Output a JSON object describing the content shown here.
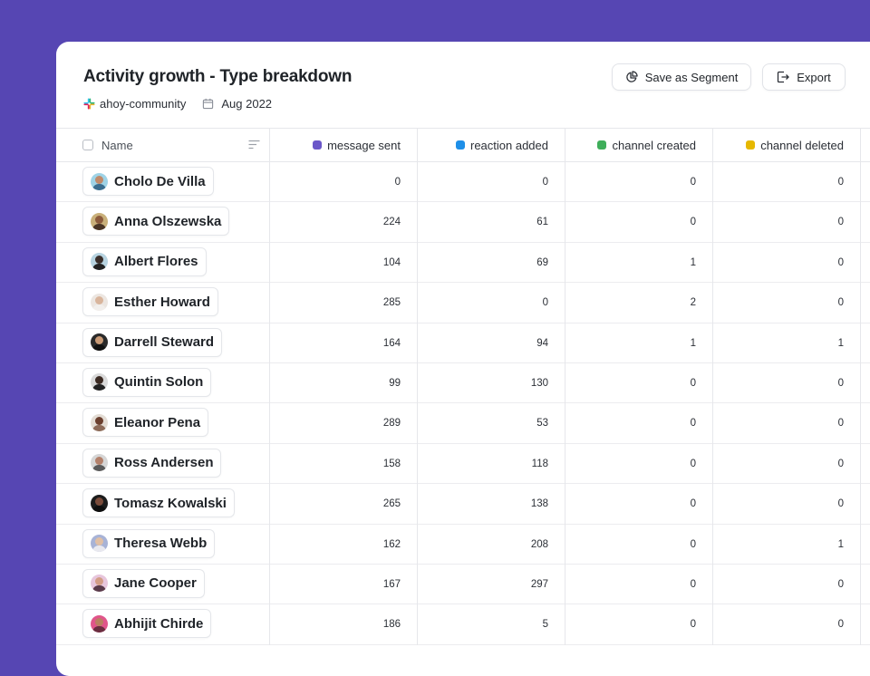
{
  "header": {
    "title": "Activity growth - Type breakdown",
    "workspace": "ahoy-community",
    "date": "Aug 2022",
    "save_segment_label": "Save as Segment",
    "export_label": "Export"
  },
  "table": {
    "name_header": "Name",
    "columns": [
      {
        "label": "message sent",
        "color": "#6b57c9"
      },
      {
        "label": "reaction added",
        "color": "#1e8fe8"
      },
      {
        "label": "channel created",
        "color": "#3fae5a"
      },
      {
        "label": "channel deleted",
        "color": "#e6b800"
      }
    ],
    "rows": [
      {
        "name": "Cholo De Villa",
        "values": [
          "0",
          "0",
          "0",
          "0"
        ],
        "avatar": {
          "bg": "#9fd3e6",
          "skin": "#c08a6a",
          "shirt": "#3b6e8f"
        }
      },
      {
        "name": "Anna Olszewska",
        "values": [
          "224",
          "61",
          "0",
          "0"
        ],
        "avatar": {
          "bg": "#c9b07a",
          "skin": "#8b5a3c",
          "shirt": "#4a3526"
        }
      },
      {
        "name": "Albert Flores",
        "values": [
          "104",
          "69",
          "1",
          "0"
        ],
        "avatar": {
          "bg": "#b7d3e0",
          "skin": "#3a2e2a",
          "shirt": "#222222"
        }
      },
      {
        "name": "Esther Howard",
        "values": [
          "285",
          "0",
          "2",
          "0"
        ],
        "avatar": {
          "bg": "#ece6e1",
          "skin": "#d9b59c",
          "shirt": "#f2efec"
        }
      },
      {
        "name": "Darrell Steward",
        "values": [
          "164",
          "94",
          "1",
          "1"
        ],
        "avatar": {
          "bg": "#2a2a2a",
          "skin": "#c99a76",
          "shirt": "#111111"
        }
      },
      {
        "name": "Quintin Solon",
        "values": [
          "99",
          "130",
          "0",
          "0"
        ],
        "avatar": {
          "bg": "#d9d9d9",
          "skin": "#3b2a22",
          "shirt": "#222222"
        }
      },
      {
        "name": "Eleanor Pena",
        "values": [
          "289",
          "53",
          "0",
          "0"
        ],
        "avatar": {
          "bg": "#e3dcd4",
          "skin": "#6b3f2e",
          "shirt": "#8c6a58"
        }
      },
      {
        "name": "Ross Andersen",
        "values": [
          "158",
          "118",
          "0",
          "0"
        ],
        "avatar": {
          "bg": "#d6d6d6",
          "skin": "#b3806a",
          "shirt": "#5a5a5a"
        }
      },
      {
        "name": "Tomasz Kowalski",
        "values": [
          "265",
          "138",
          "0",
          "0"
        ],
        "avatar": {
          "bg": "#1c1c1c",
          "skin": "#7a4b3a",
          "shirt": "#0e0e0e"
        }
      },
      {
        "name": "Theresa Webb",
        "values": [
          "162",
          "208",
          "0",
          "1"
        ],
        "avatar": {
          "bg": "#a8b3d6",
          "skin": "#e0bfa5",
          "shirt": "#e9e9ef"
        }
      },
      {
        "name": "Jane Cooper",
        "values": [
          "167",
          "297",
          "0",
          "0"
        ],
        "avatar": {
          "bg": "#e7c6dc",
          "skin": "#d39d86",
          "shirt": "#5a3b4a"
        }
      },
      {
        "name": "Abhijit Chirde",
        "values": [
          "186",
          "5",
          "0",
          "0"
        ],
        "avatar": {
          "bg": "#e0558a",
          "skin": "#b88060",
          "shirt": "#6a2d3f"
        }
      }
    ]
  }
}
